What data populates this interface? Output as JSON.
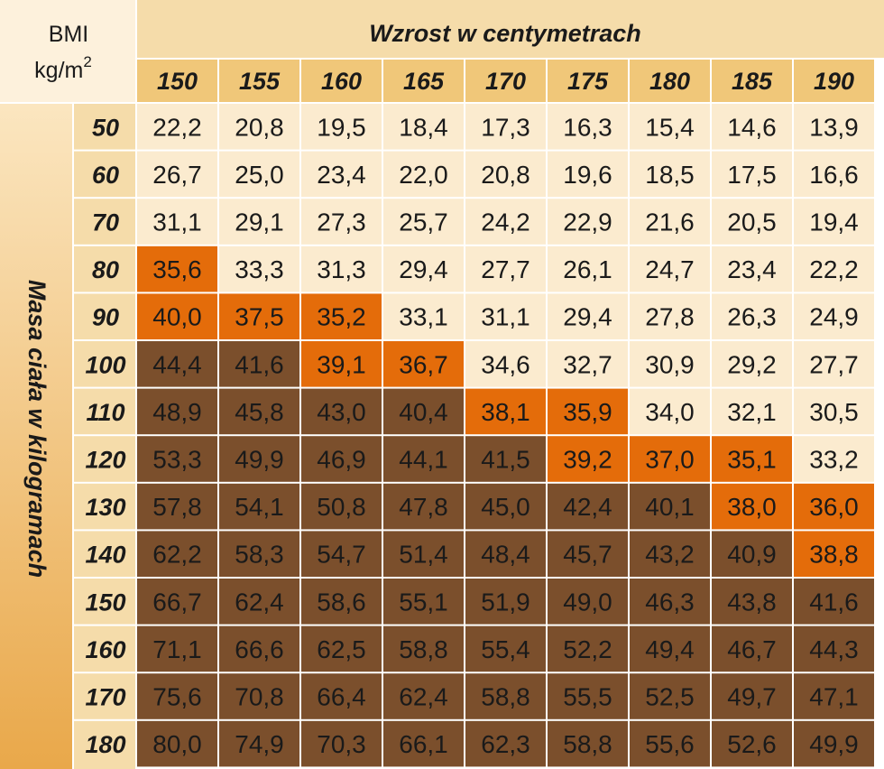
{
  "corner": {
    "line1": "BMI",
    "line2": "kg/m",
    "sup": "2"
  },
  "chart_data": {
    "type": "table",
    "title": "Wzrost w centymetrach",
    "row_label": "Masa ciała w kilogramach",
    "columns": [
      "150",
      "155",
      "160",
      "165",
      "170",
      "175",
      "180",
      "185",
      "190"
    ],
    "rows": [
      {
        "label": "50",
        "values": [
          "22,2",
          "20,8",
          "19,5",
          "18,4",
          "17,3",
          "16,3",
          "15,4",
          "14,6",
          "13,9"
        ],
        "levels": [
          0,
          0,
          0,
          0,
          0,
          0,
          0,
          0,
          0
        ]
      },
      {
        "label": "60",
        "values": [
          "26,7",
          "25,0",
          "23,4",
          "22,0",
          "20,8",
          "19,6",
          "18,5",
          "17,5",
          "16,6"
        ],
        "levels": [
          0,
          0,
          0,
          0,
          0,
          0,
          0,
          0,
          0
        ]
      },
      {
        "label": "70",
        "values": [
          "31,1",
          "29,1",
          "27,3",
          "25,7",
          "24,2",
          "22,9",
          "21,6",
          "20,5",
          "19,4"
        ],
        "levels": [
          0,
          0,
          0,
          0,
          0,
          0,
          0,
          0,
          0
        ]
      },
      {
        "label": "80",
        "values": [
          "35,6",
          "33,3",
          "31,3",
          "29,4",
          "27,7",
          "26,1",
          "24,7",
          "23,4",
          "22,2"
        ],
        "levels": [
          1,
          0,
          0,
          0,
          0,
          0,
          0,
          0,
          0
        ]
      },
      {
        "label": "90",
        "values": [
          "40,0",
          "37,5",
          "35,2",
          "33,1",
          "31,1",
          "29,4",
          "27,8",
          "26,3",
          "24,9"
        ],
        "levels": [
          1,
          1,
          1,
          0,
          0,
          0,
          0,
          0,
          0
        ]
      },
      {
        "label": "100",
        "values": [
          "44,4",
          "41,6",
          "39,1",
          "36,7",
          "34,6",
          "32,7",
          "30,9",
          "29,2",
          "27,7"
        ],
        "levels": [
          2,
          2,
          1,
          1,
          0,
          0,
          0,
          0,
          0
        ]
      },
      {
        "label": "110",
        "values": [
          "48,9",
          "45,8",
          "43,0",
          "40,4",
          "38,1",
          "35,9",
          "34,0",
          "32,1",
          "30,5"
        ],
        "levels": [
          2,
          2,
          2,
          2,
          1,
          1,
          0,
          0,
          0
        ]
      },
      {
        "label": "120",
        "values": [
          "53,3",
          "49,9",
          "46,9",
          "44,1",
          "41,5",
          "39,2",
          "37,0",
          "35,1",
          "33,2"
        ],
        "levels": [
          2,
          2,
          2,
          2,
          2,
          1,
          1,
          1,
          0
        ]
      },
      {
        "label": "130",
        "values": [
          "57,8",
          "54,1",
          "50,8",
          "47,8",
          "45,0",
          "42,4",
          "40,1",
          "38,0",
          "36,0"
        ],
        "levels": [
          2,
          2,
          2,
          2,
          2,
          2,
          2,
          1,
          1
        ]
      },
      {
        "label": "140",
        "values": [
          "62,2",
          "58,3",
          "54,7",
          "51,4",
          "48,4",
          "45,7",
          "43,2",
          "40,9",
          "38,8"
        ],
        "levels": [
          2,
          2,
          2,
          2,
          2,
          2,
          2,
          2,
          1
        ]
      },
      {
        "label": "150",
        "values": [
          "66,7",
          "62,4",
          "58,6",
          "55,1",
          "51,9",
          "49,0",
          "46,3",
          "43,8",
          "41,6"
        ],
        "levels": [
          2,
          2,
          2,
          2,
          2,
          2,
          2,
          2,
          2
        ]
      },
      {
        "label": "160",
        "values": [
          "71,1",
          "66,6",
          "62,5",
          "58,8",
          "55,4",
          "52,2",
          "49,4",
          "46,7",
          "44,3"
        ],
        "levels": [
          2,
          2,
          2,
          2,
          2,
          2,
          2,
          2,
          2
        ]
      },
      {
        "label": "170",
        "values": [
          "75,6",
          "70,8",
          "66,4",
          "62,4",
          "58,8",
          "55,5",
          "52,5",
          "49,7",
          "47,1"
        ],
        "levels": [
          2,
          2,
          2,
          2,
          2,
          2,
          2,
          2,
          2
        ]
      },
      {
        "label": "180",
        "values": [
          "80,0",
          "74,9",
          "70,3",
          "66,1",
          "62,3",
          "58,8",
          "55,6",
          "52,6",
          "49,9"
        ],
        "levels": [
          2,
          2,
          2,
          2,
          2,
          2,
          2,
          2,
          2
        ]
      }
    ],
    "colors": {
      "level0": "#fbebcf",
      "level1": "#e46c0a",
      "level2": "#7b4f2c",
      "header_light": "#fdf1dc",
      "header_band": "#f5dcaa",
      "column_header": "#f0c779",
      "side_gradient_top": "#fbe6c0",
      "side_gradient_bottom": "#e9a84a",
      "grid": "#ffffff"
    }
  }
}
